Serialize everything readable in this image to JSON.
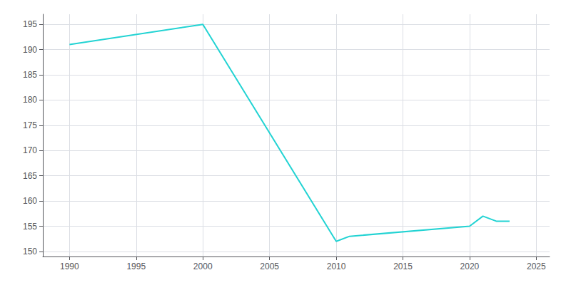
{
  "chart_data": {
    "type": "line",
    "x": [
      1990,
      2000,
      2010,
      2011,
      2020,
      2021,
      2022,
      2023
    ],
    "values": [
      191,
      195,
      152,
      153,
      155,
      157,
      156,
      156
    ],
    "color": "#22d3d3",
    "xlim": [
      1988,
      2026
    ],
    "xticks": [
      1990,
      1995,
      2000,
      2005,
      2010,
      2015,
      2020,
      2025
    ],
    "ylim": [
      149,
      197
    ],
    "yticks": [
      150,
      155,
      160,
      165,
      170,
      175,
      180,
      185,
      190,
      195
    ],
    "grid": true
  }
}
